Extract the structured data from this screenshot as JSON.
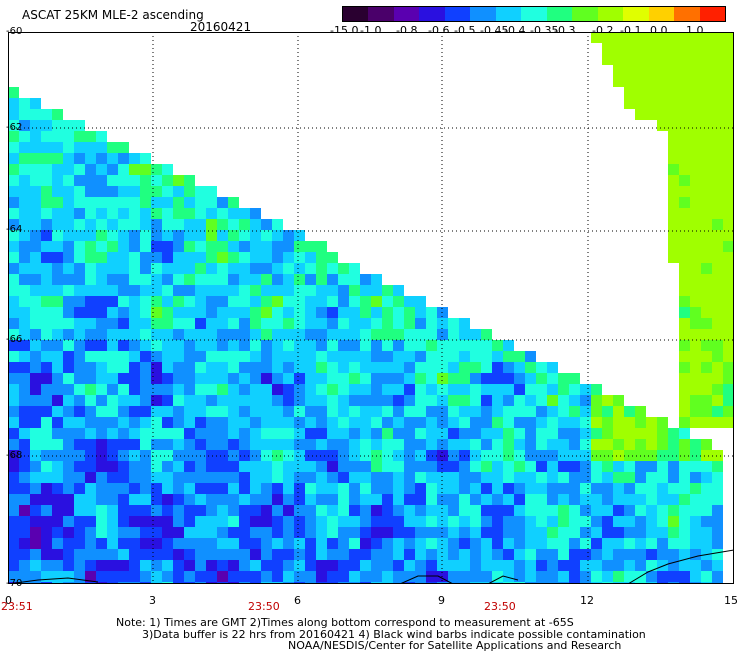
{
  "title": "ASCAT 25KM MLE-2 ascending",
  "date": "20160421",
  "colorbar": {
    "labels": [
      "-15.0",
      "-1.0",
      "-0.8",
      "-0.6",
      "-0.5",
      "-0.45",
      "-0.4",
      "-0.35",
      "-0.3",
      "-0.2",
      "-0.1",
      "0.0",
      "1.0"
    ],
    "colors": [
      "#2a0030",
      "#4a006a",
      "#5a00b0",
      "#2a10e0",
      "#1040ff",
      "#1090ff",
      "#10d0ff",
      "#20ffe0",
      "#20ff80",
      "#60ff20",
      "#a0ff00",
      "#e0ff00",
      "#ffd000",
      "#ff7000",
      "#ff2000"
    ]
  },
  "lat_labels": [
    "-60",
    "-62",
    "-64",
    "-66",
    "-68",
    "-70"
  ],
  "x_ticks": [
    "0",
    "3",
    "6",
    "9",
    "12",
    "15"
  ],
  "time_labels": [
    "23:51",
    "23:50",
    "23:50"
  ],
  "notes": [
    "Note: 1) Times are GMT 2)Times along bottom correspond to measurement at -65S",
    "3)Data buffer is 22 hrs from 20160421 4) Black wind barbs indicate possible contamination",
    "NOAA/NESDIS/Center for Satellite Applications and Research"
  ]
}
